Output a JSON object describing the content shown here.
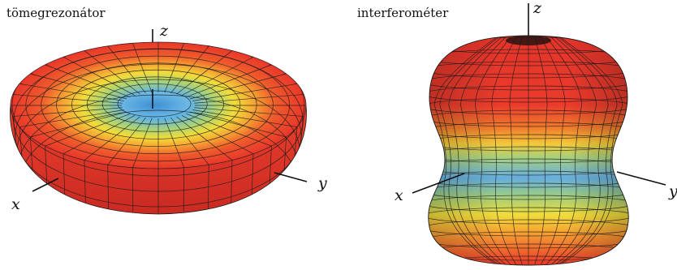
{
  "panels": [
    {
      "title": "tömegrezonátor",
      "axes": {
        "z": "z",
        "x": "x",
        "y": "y"
      },
      "surface": "torus"
    },
    {
      "title": "interferométer",
      "axes": {
        "z": "z",
        "x": "x",
        "y": "y"
      },
      "surface": "peanut"
    }
  ],
  "colors": {
    "red": "#e8372a",
    "orange": "#f4842c",
    "yellow": "#f2dc3a",
    "green": "#a9cf7d",
    "blue": "#5aa8e0",
    "mesh": "#1a1a1a"
  }
}
